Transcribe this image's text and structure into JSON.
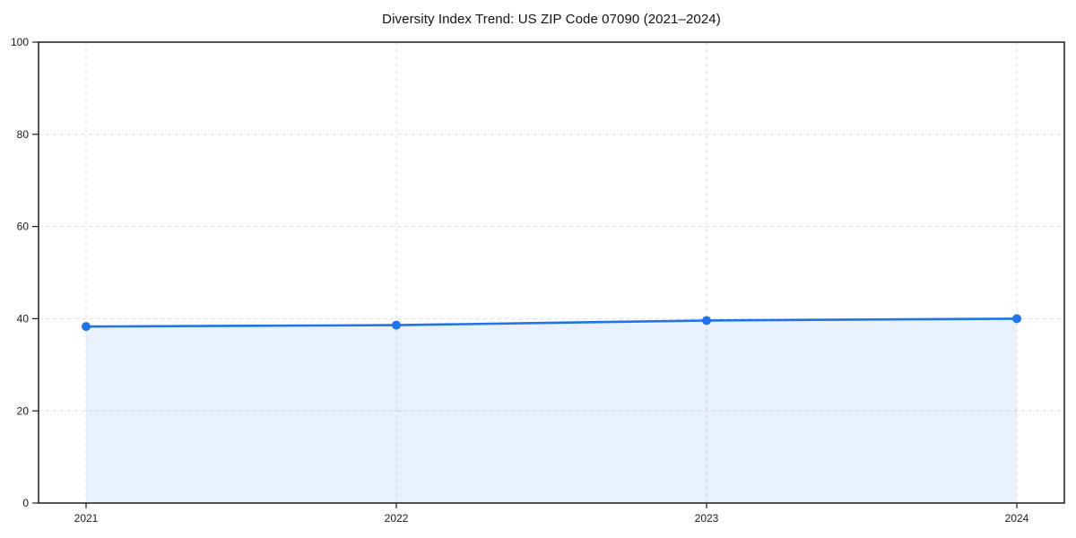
{
  "chart_data": {
    "type": "area",
    "title": "Diversity Index Trend: US ZIP Code 07090 (2021–2024)",
    "series_name": "Diversity Index",
    "categories": [
      "2021",
      "2022",
      "2023",
      "2024"
    ],
    "values": [
      38.3,
      38.6,
      39.6,
      40.0
    ],
    "xlabel": "",
    "ylabel": "",
    "ylim": [
      0,
      100
    ],
    "yticks": [
      0,
      20,
      40,
      60,
      80,
      100
    ],
    "grid": true,
    "grid_style": "dashed",
    "legend": false,
    "marker": "circle",
    "colors": {
      "line": "#2173e8",
      "marker": "#2173e8",
      "fill": "rgba(33,115,232,0.10)",
      "grid": "#dcdcdc",
      "axis": "#1c1c1c",
      "tick_label": "#1a1a1a",
      "title": "#111111",
      "background": "#ffffff"
    }
  }
}
